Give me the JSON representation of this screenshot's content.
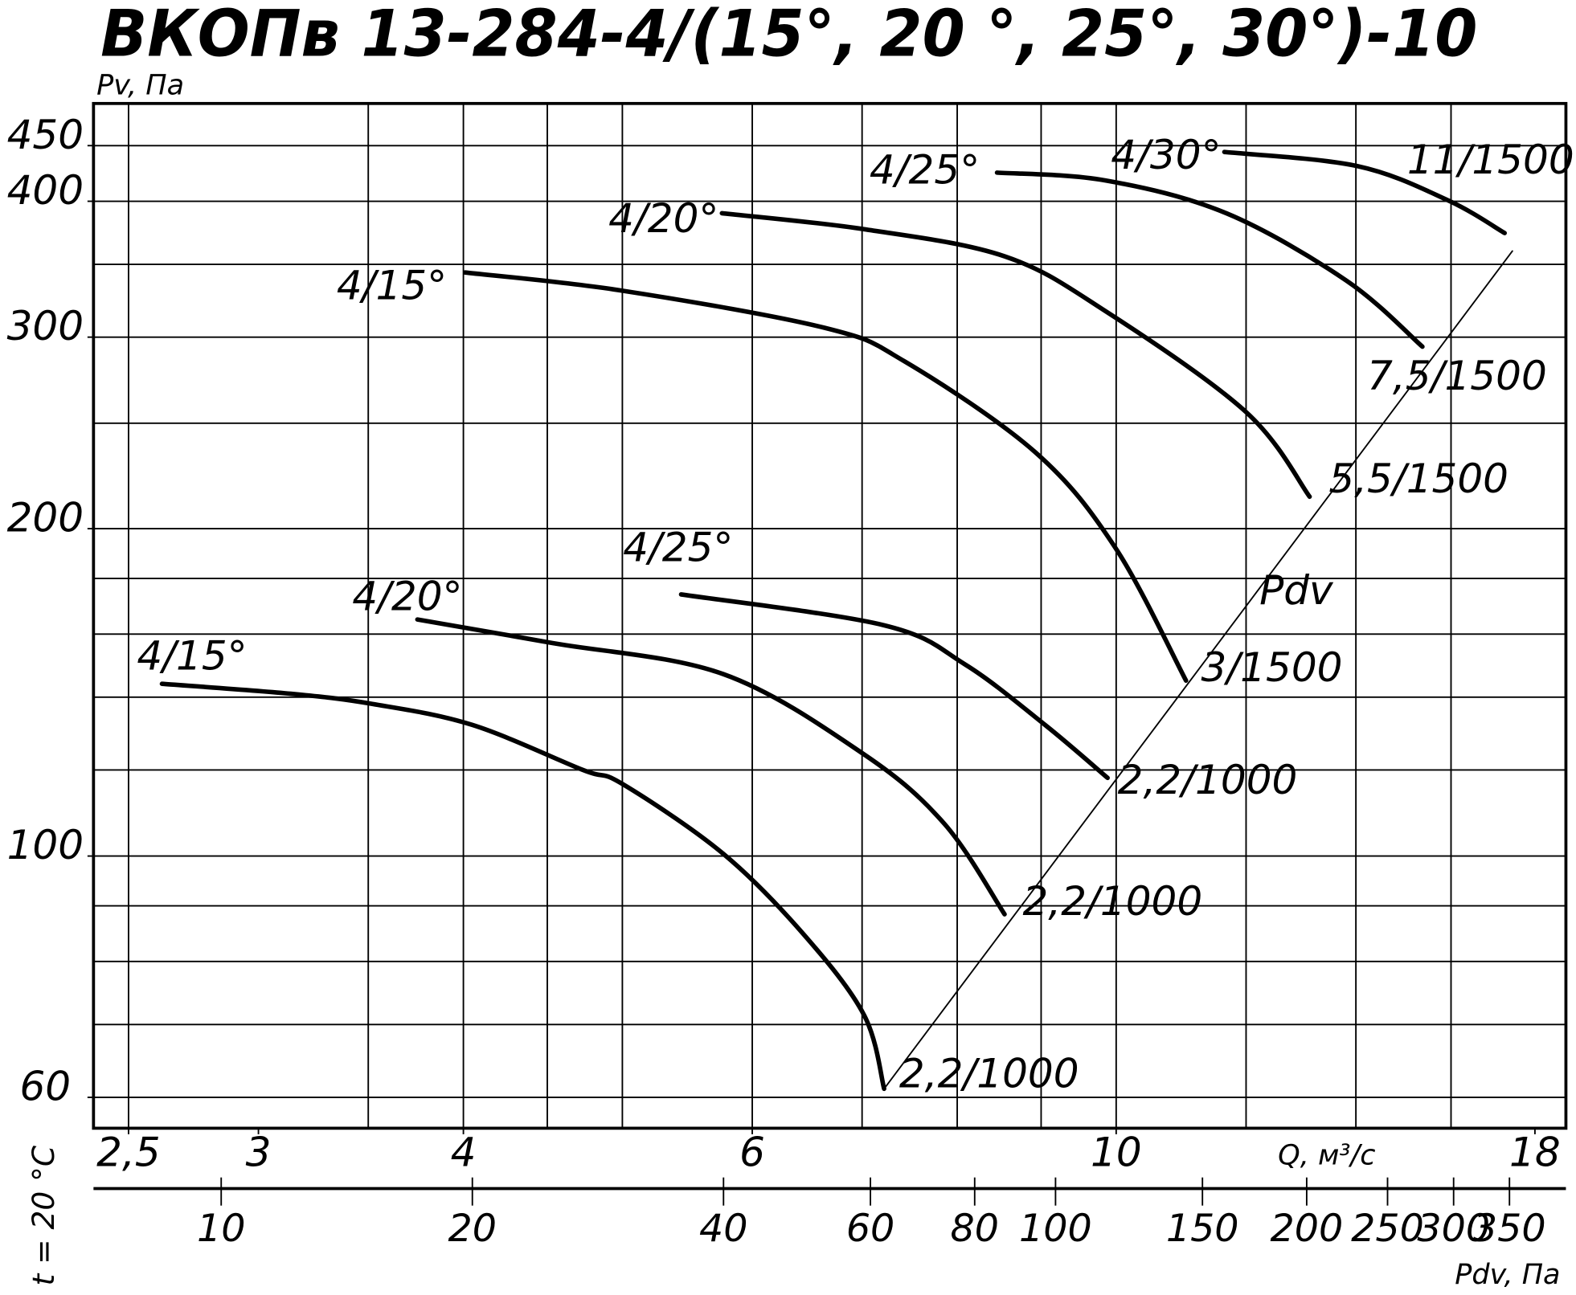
{
  "chart_data": {
    "type": "line",
    "title": "ВКОПв 13-284-4/(15°, 20 °, 25°, 30°)-10",
    "y_label": "Pv, Па",
    "x_label": "Q, м³/с",
    "side_note": "t = 20 °C",
    "log_x": true,
    "log_y": true,
    "xlim": [
      2.38,
      18.8
    ],
    "ylim": [
      56.2,
      492
    ],
    "xticks": [
      {
        "value": 2.5,
        "label": "2,5"
      },
      3,
      4,
      6,
      10,
      18
    ],
    "yticks": [
      60,
      100,
      200,
      300,
      400,
      450
    ],
    "xgrid": [
      2.5,
      3.5,
      4,
      4.5,
      5,
      6,
      7,
      8,
      9,
      10,
      12,
      14,
      16
    ],
    "ygrid": [
      60,
      70,
      80,
      90,
      100,
      120,
      140,
      160,
      180,
      200,
      250,
      300,
      350,
      400,
      450
    ],
    "pdv_axis": {
      "label": "Pdv, Па",
      "lim": [
        7.03,
        409
      ],
      "ticks": [
        10,
        20,
        40,
        60,
        80,
        100,
        150,
        200,
        250,
        300,
        350
      ]
    },
    "series": [
      {
        "name": "4/15°",
        "end_label": "2,2/1000",
        "color": "#000000",
        "x": [
          2.62,
          3.14,
          3.52,
          4.05,
          4.73,
          5.0,
          5.76,
          6.45,
          7.02,
          7.22
        ],
        "values": [
          144,
          141,
          138,
          132,
          120,
          116.5,
          100.5,
          84.7,
          71.4,
          61.1
        ]
      },
      {
        "name": "4/20°",
        "end_label": "2,2/1000",
        "color": "#000000",
        "x": [
          3.75,
          4.53,
          5.76,
          7.02,
          7.86,
          8.55
        ],
        "values": [
          165,
          157,
          147,
          124,
          107,
          88.4
        ]
      },
      {
        "name": "4/25°",
        "end_label": "2,2/1000",
        "color": "#000000",
        "x": [
          5.43,
          7.22,
          8.09,
          9.05,
          9.88
        ],
        "values": [
          174,
          163,
          150,
          132,
          118
        ]
      },
      {
        "name": "4/15°",
        "end_label": "3/1500",
        "color": "#000000",
        "x": [
          4.01,
          5.0,
          6.64,
          7.43,
          8.93,
          9.99,
          11.03
        ],
        "values": [
          344,
          331,
          306,
          285,
          235,
          192,
          145
        ]
      },
      {
        "name": "4/20°",
        "end_label": "5,5/1500",
        "color": "#000000",
        "x": [
          5.75,
          7.02,
          8.55,
          9.85,
          12.0,
          13.12
        ],
        "values": [
          390,
          377,
          356,
          317,
          256,
          214
        ]
      },
      {
        "name": "4/25°",
        "end_label": "7,5/1500",
        "color": "#000000",
        "x": [
          8.46,
          9.85,
          11.67,
          13.82,
          15.37
        ],
        "values": [
          425,
          418,
          390,
          338,
          294
        ]
      },
      {
        "name": "4/30°",
        "end_label": "11/1500",
        "color": "#000000",
        "x": [
          11.64,
          14.02,
          15.92,
          17.25
        ],
        "values": [
          444,
          431,
          401,
          374
        ]
      },
      {
        "name": "Pdv",
        "color": "#000000",
        "x": [
          7.22,
          17.44
        ],
        "values": [
          61.1,
          360
        ]
      }
    ]
  }
}
